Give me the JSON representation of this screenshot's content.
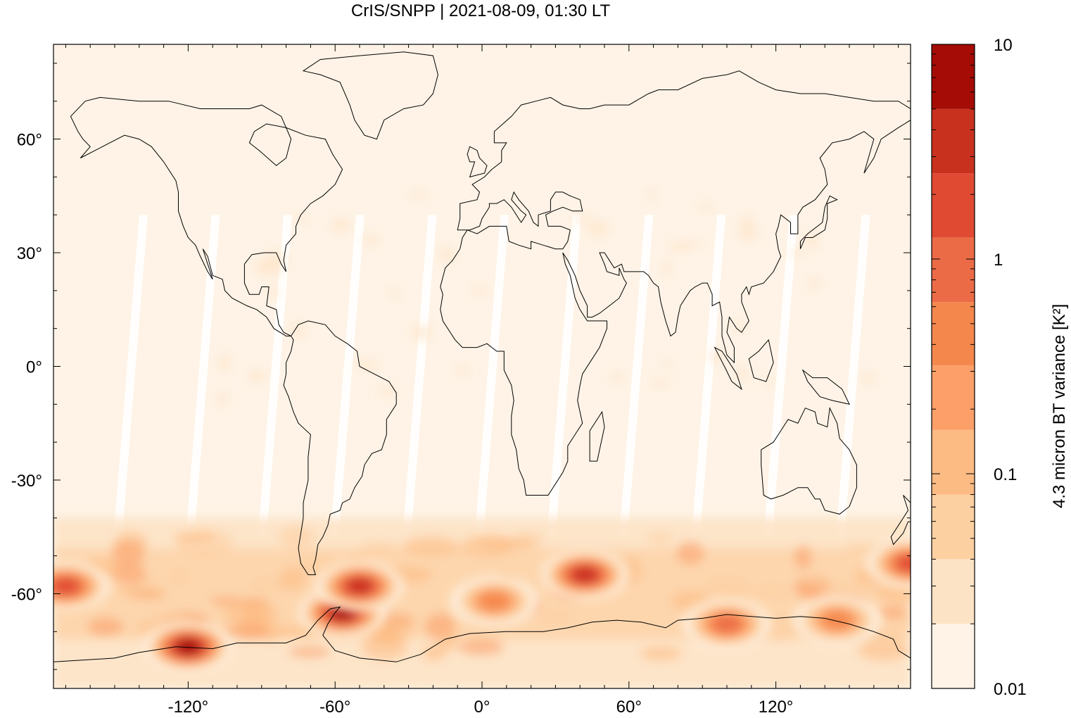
{
  "title": "CrIS/SNPP | 2021-08-09, 01:30 LT",
  "chart_data": {
    "type": "heatmap",
    "title": "CrIS/SNPP | 2021-08-09, 01:30 LT",
    "projection": "equirectangular",
    "xlim": [
      -175,
      175
    ],
    "ylim": [
      -85,
      85
    ],
    "x_ticks": [
      -120,
      -60,
      0,
      60,
      120
    ],
    "x_tick_labels": [
      "-120°",
      "-60°",
      "0°",
      "60°",
      "120°"
    ],
    "y_ticks": [
      60,
      30,
      0,
      -30,
      -60
    ],
    "y_tick_labels": [
      "60°",
      "30°",
      "0°",
      "-30°",
      "-60°"
    ],
    "colorbar": {
      "label": "4.3 micron BT variance [K²]",
      "scale": "log",
      "range": [
        0.01,
        10
      ],
      "tick_labels": [
        "10",
        "1",
        "0.1",
        "0.01"
      ],
      "levels": [
        0.01,
        0.02,
        0.04,
        0.08,
        0.16,
        0.32,
        0.63,
        1.26,
        2.51,
        5.0,
        10
      ],
      "colors": [
        "#fef3e6",
        "#fde3c5",
        "#fdd0a2",
        "#fdbb84",
        "#fc9f68",
        "#f4874c",
        "#ec6b47",
        "#e04a33",
        "#c9311f",
        "#a40c05"
      ]
    },
    "background_value": 0.01,
    "high_variance_regions": [
      {
        "lon": -57,
        "lat": -65,
        "value": 6.0
      },
      {
        "lon": -50,
        "lat": -58,
        "value": 3.0
      },
      {
        "lon": -120,
        "lat": -74,
        "value": 6.0
      },
      {
        "lon": 42,
        "lat": -55,
        "value": 3.0
      },
      {
        "lon": -170,
        "lat": -58,
        "value": 1.5
      },
      {
        "lon": 175,
        "lat": -52,
        "value": 1.5
      },
      {
        "lon": 100,
        "lat": -68,
        "value": 1.0
      },
      {
        "lon": 145,
        "lat": -67,
        "value": 0.6
      },
      {
        "lon": 5,
        "lat": -62,
        "value": 0.5
      }
    ],
    "data_gaps": "white diagonal swath gaps between satellite orbits"
  },
  "colors": {
    "frame": "#000000",
    "coastline": "#000000",
    "background_field": "#fef4e8"
  }
}
